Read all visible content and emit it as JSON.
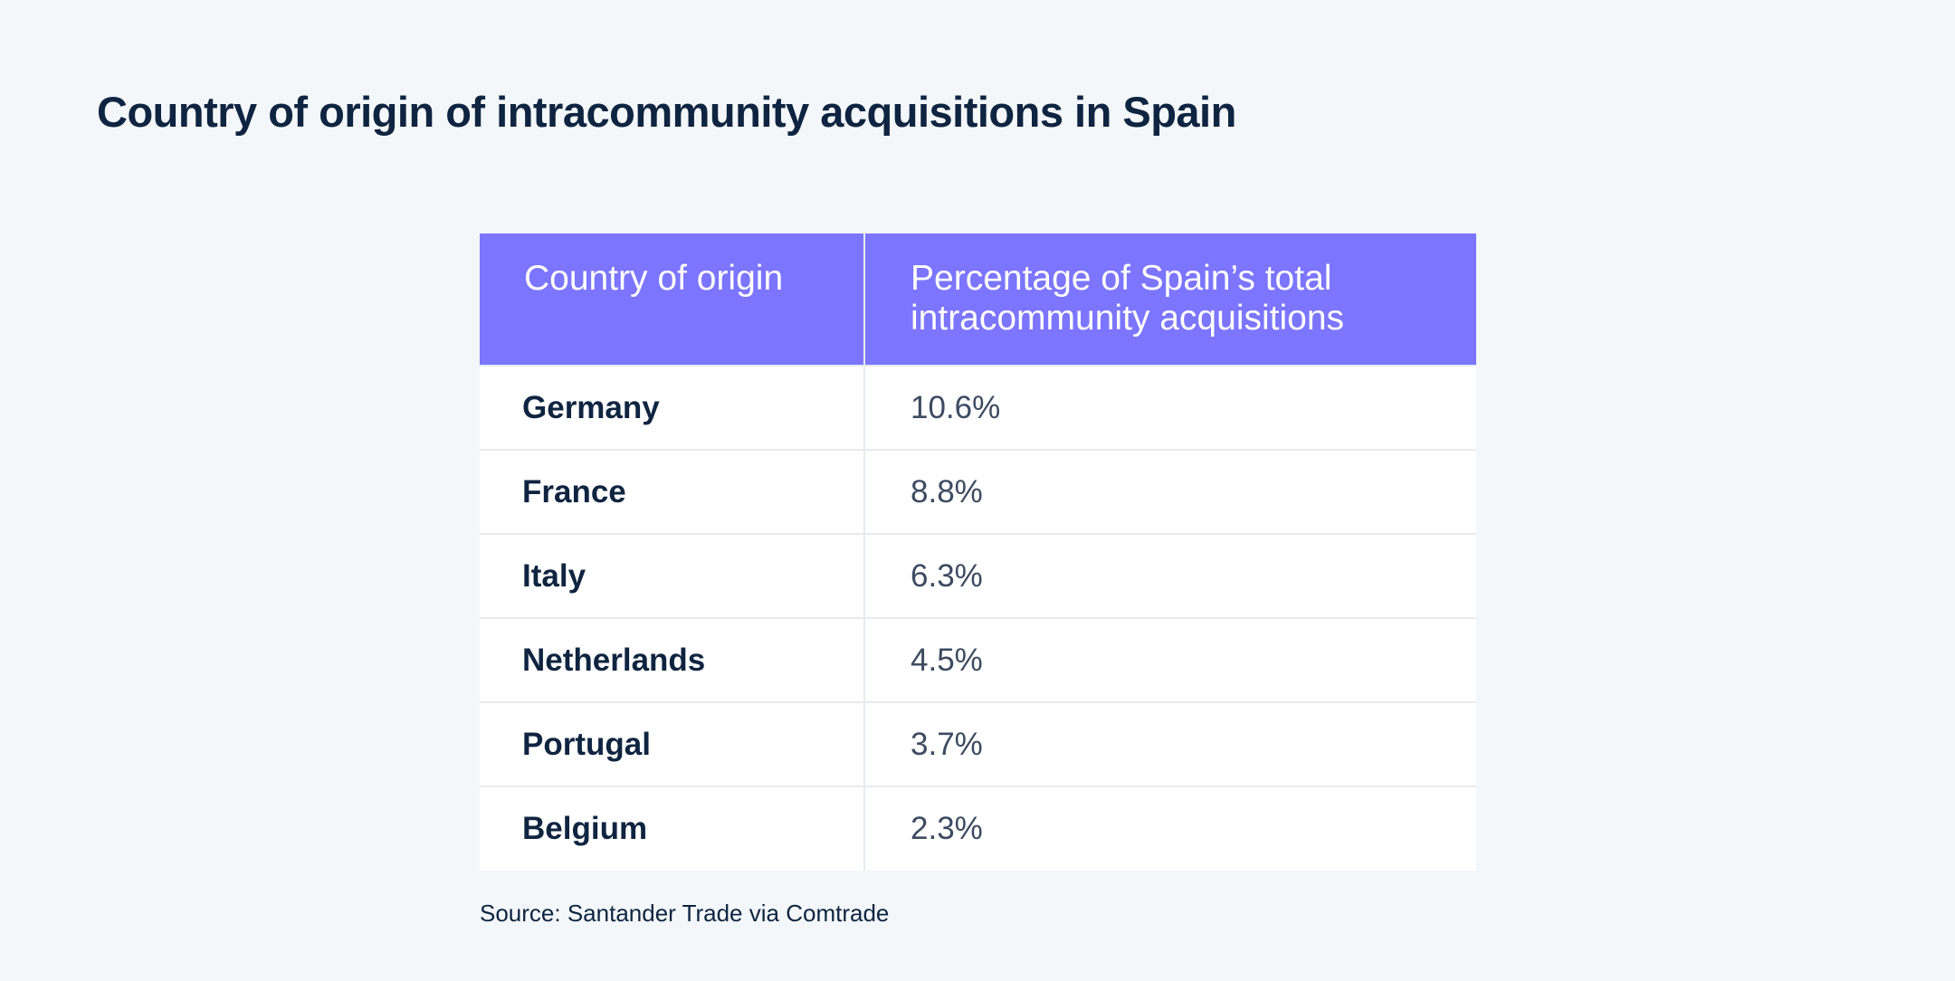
{
  "title": "Country of origin of intracommunity acquisitions in Spain",
  "table": {
    "header": [
      "Country of origin",
      "Percentage of Spain’s total intracommunity acquisitions"
    ],
    "rows": [
      [
        "Germany",
        "10.6%"
      ],
      [
        "France",
        "8.8%"
      ],
      [
        "Italy",
        "6.3%"
      ],
      [
        "Netherlands",
        "4.5%"
      ],
      [
        "Portugal",
        "3.7%"
      ],
      [
        "Belgium",
        "2.3%"
      ]
    ]
  },
  "source": "Source: Santander Trade via Comtrade"
}
